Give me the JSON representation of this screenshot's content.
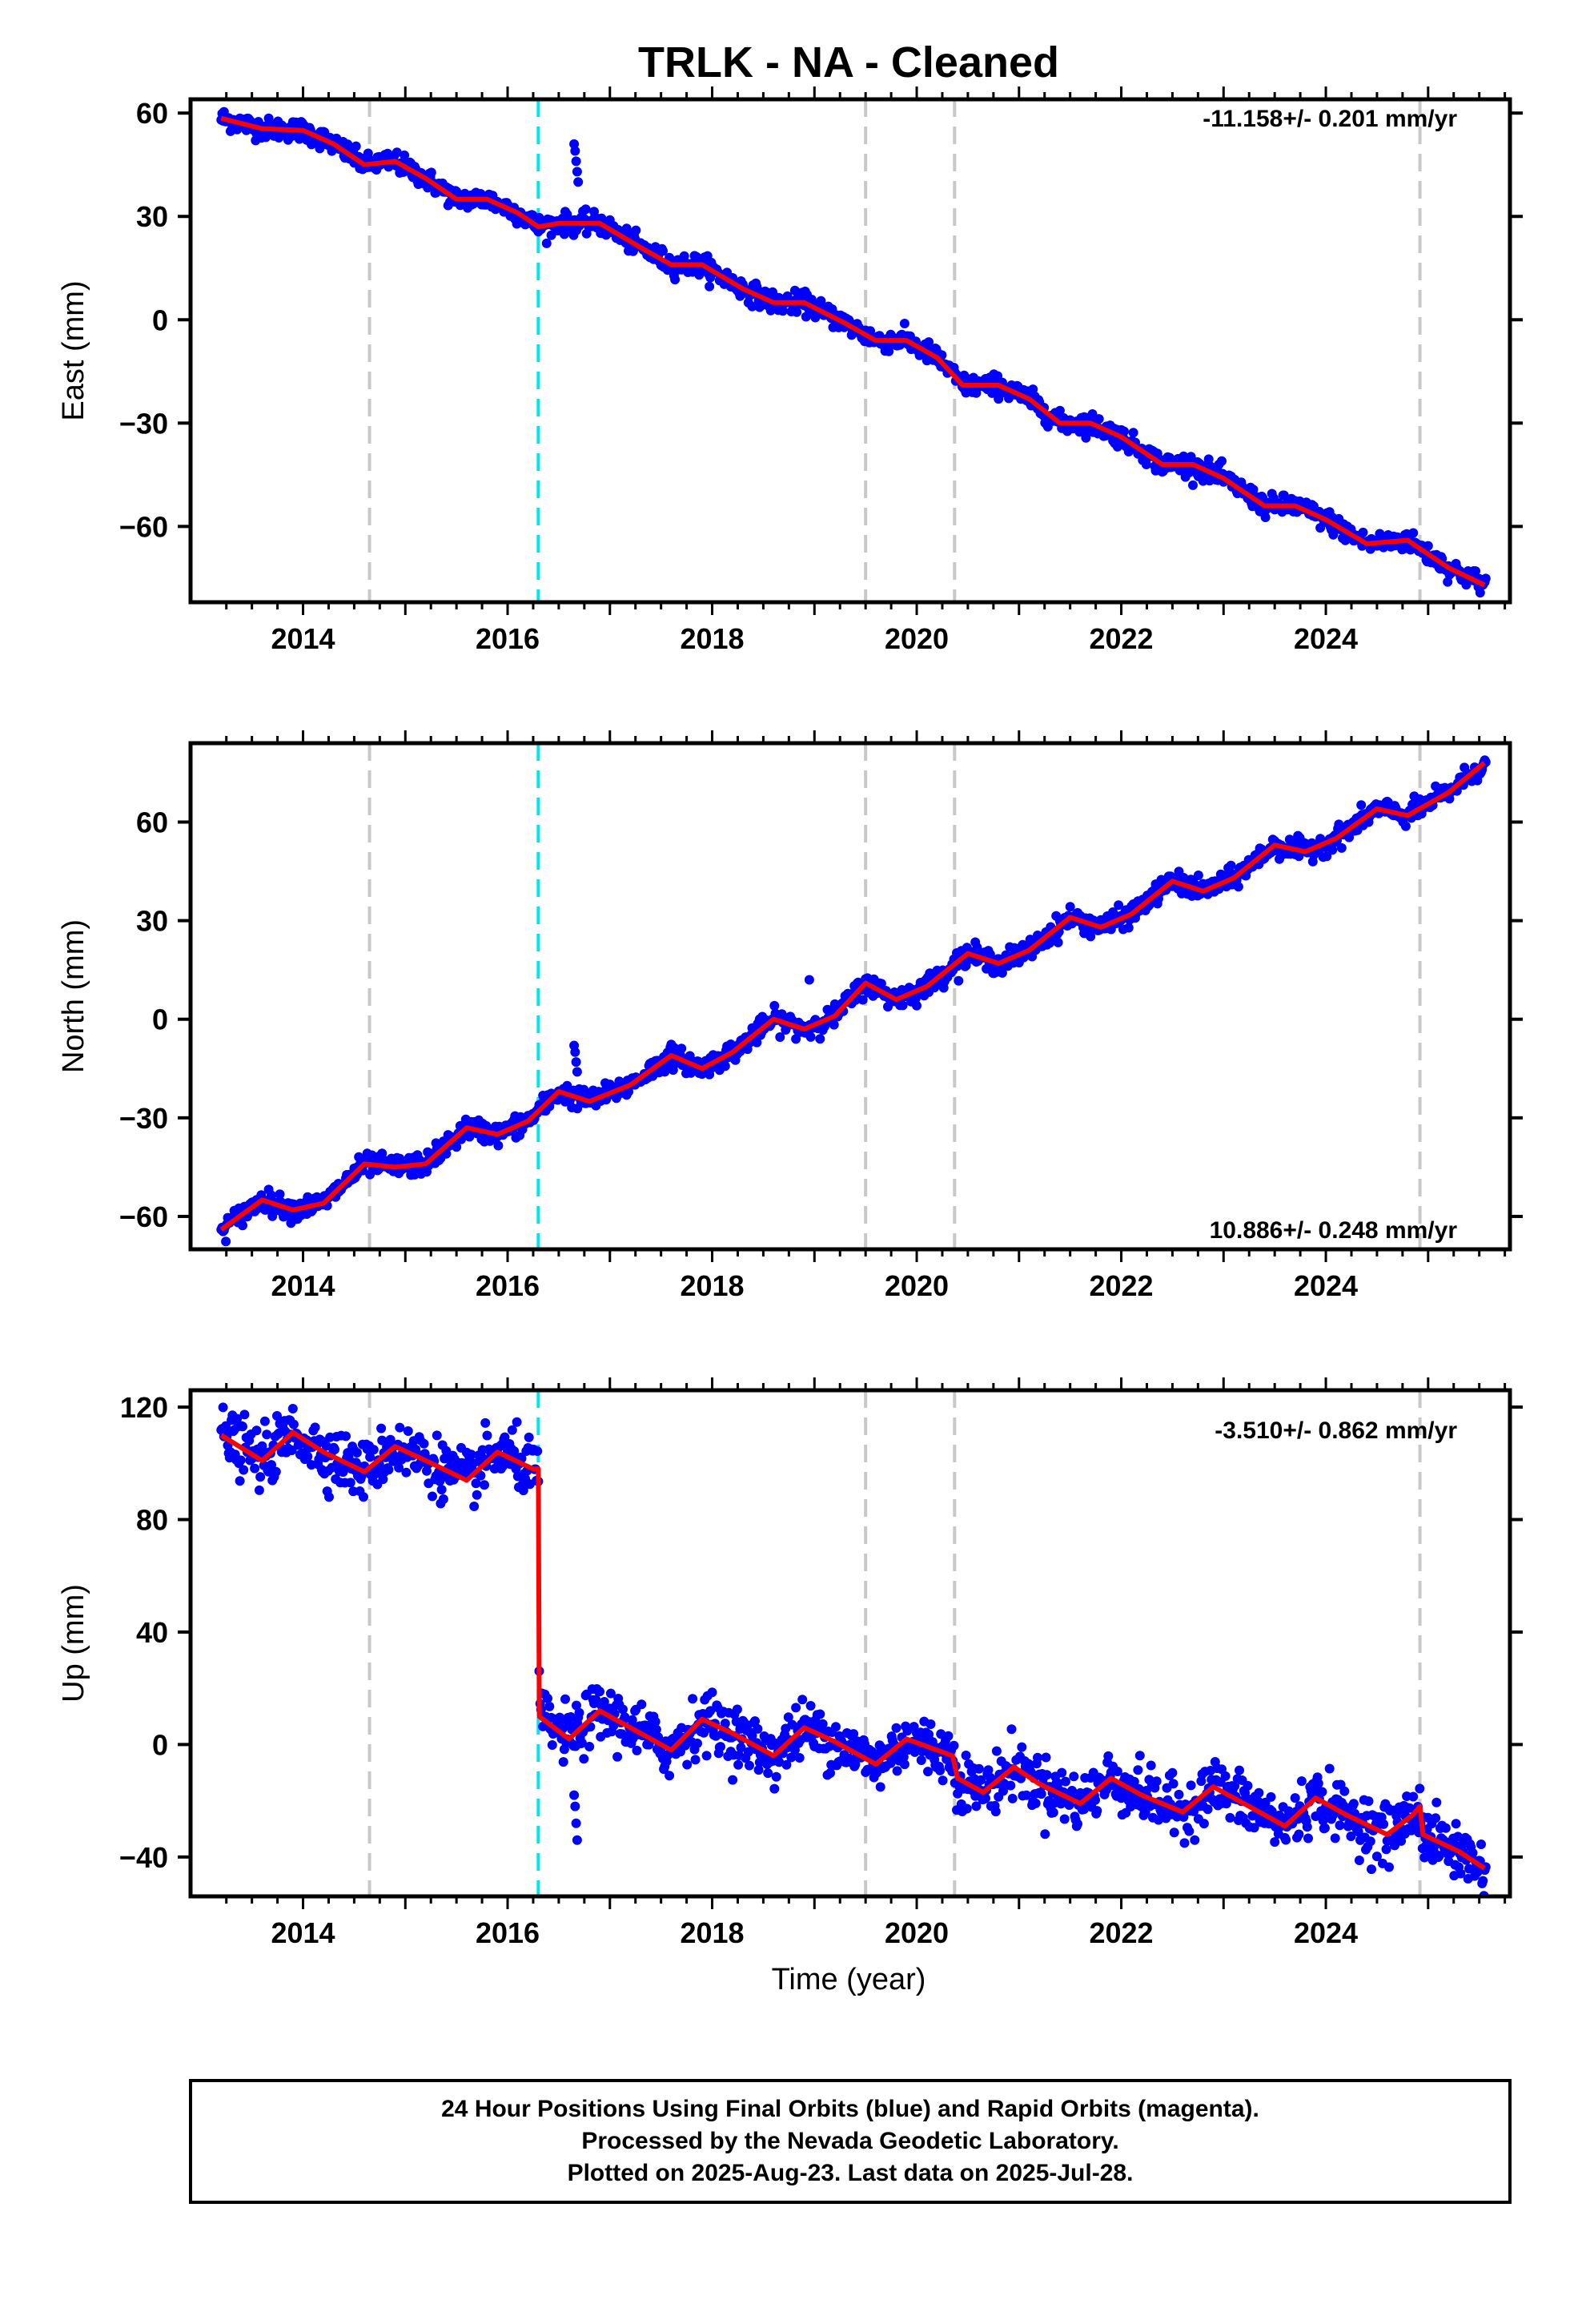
{
  "title": "TRLK  - NA - Cleaned",
  "xlabel": "Time (year)",
  "footer": {
    "line1": "24 Hour Positions Using Final Orbits (blue) and Rapid Orbits (magenta).",
    "line2": "Processed by the Nevada Geodetic Laboratory.",
    "line3": "Plotted on 2025-Aug-23. Last data on 2025-Jul-28."
  },
  "colors": {
    "data": "#0000ff",
    "model": "#ff0000",
    "equipment_change": "#c8c8c8",
    "earthquake": "#00e5ee"
  },
  "chart_data": [
    {
      "type": "scatter",
      "name": "east",
      "ylabel": "East (mm)",
      "rate_label": "-11.158+/- 0.201 mm/yr",
      "xlim": [
        2012.9,
        2025.8
      ],
      "ylim": [
        -82,
        64
      ],
      "yticks": [
        -60,
        -30,
        0,
        30,
        60
      ],
      "xticks": [
        2014,
        2016,
        2018,
        2020,
        2022,
        2024
      ],
      "xtick_labels": [
        "2014",
        "2016",
        "2018",
        "2020",
        "2022",
        "2024"
      ],
      "vlines_gray": [
        2014.65,
        2019.5,
        2020.37,
        2024.92
      ],
      "vlines_cyan": [
        2016.3
      ],
      "rate_mm_per_yr": -11.158,
      "y_at_start": 57.5,
      "seasonal_amp": 2.5,
      "scatter": 1.5,
      "steps": [],
      "outliers": [
        [
          2016.65,
          51
        ],
        [
          2016.66,
          49
        ],
        [
          2016.67,
          46
        ],
        [
          2016.68,
          43
        ],
        [
          2016.69,
          40
        ]
      ],
      "fit": [
        [
          2013.2,
          58.5
        ],
        [
          2013.6,
          55.5
        ],
        [
          2014.0,
          55
        ],
        [
          2014.3,
          51
        ],
        [
          2014.6,
          45
        ],
        [
          2014.9,
          46
        ],
        [
          2015.2,
          41
        ],
        [
          2015.5,
          35
        ],
        [
          2015.8,
          35
        ],
        [
          2016.1,
          31
        ],
        [
          2016.3,
          27
        ],
        [
          2016.5,
          28
        ],
        [
          2016.9,
          28
        ],
        [
          2017.3,
          21
        ],
        [
          2017.6,
          16
        ],
        [
          2017.9,
          16
        ],
        [
          2018.3,
          9
        ],
        [
          2018.6,
          5
        ],
        [
          2018.9,
          5
        ],
        [
          2019.3,
          -1
        ],
        [
          2019.6,
          -6
        ],
        [
          2019.9,
          -6
        ],
        [
          2020.2,
          -11
        ],
        [
          2020.45,
          -19
        ],
        [
          2020.8,
          -19
        ],
        [
          2021.1,
          -23
        ],
        [
          2021.4,
          -30
        ],
        [
          2021.7,
          -30
        ],
        [
          2022.0,
          -34
        ],
        [
          2022.4,
          -42
        ],
        [
          2022.7,
          -42
        ],
        [
          2023.0,
          -46
        ],
        [
          2023.4,
          -54
        ],
        [
          2023.7,
          -54
        ],
        [
          2024.0,
          -58
        ],
        [
          2024.4,
          -65
        ],
        [
          2024.8,
          -64
        ],
        [
          2025.2,
          -72
        ],
        [
          2025.55,
          -77
        ]
      ]
    },
    {
      "type": "scatter",
      "name": "north",
      "ylabel": "North (mm)",
      "rate_label": "10.886+/- 0.248 mm/yr",
      "xlim": [
        2012.9,
        2025.8
      ],
      "ylim": [
        -70,
        84
      ],
      "yticks": [
        -60,
        -30,
        0,
        30,
        60
      ],
      "xticks": [
        2014,
        2016,
        2018,
        2020,
        2022,
        2024
      ],
      "xtick_labels": [
        "2014",
        "2016",
        "2018",
        "2020",
        "2022",
        "2024"
      ],
      "vlines_gray": [
        2014.65,
        2019.5,
        2020.37,
        2024.92
      ],
      "vlines_cyan": [
        2016.3
      ],
      "rate_mm_per_yr": 10.886,
      "y_at_start": -63,
      "seasonal_amp": 3,
      "scatter": 1.6,
      "steps": [],
      "outliers": [
        [
          2016.65,
          -8
        ],
        [
          2016.66,
          -10
        ],
        [
          2016.67,
          -13
        ],
        [
          2016.68,
          -16
        ],
        [
          2018.95,
          12
        ]
      ],
      "fit": [
        [
          2013.2,
          -64
        ],
        [
          2013.6,
          -55
        ],
        [
          2013.9,
          -58
        ],
        [
          2014.2,
          -56
        ],
        [
          2014.6,
          -44
        ],
        [
          2014.9,
          -45
        ],
        [
          2015.2,
          -44
        ],
        [
          2015.6,
          -33
        ],
        [
          2015.9,
          -35
        ],
        [
          2016.2,
          -31
        ],
        [
          2016.5,
          -22
        ],
        [
          2016.8,
          -25
        ],
        [
          2017.2,
          -20
        ],
        [
          2017.6,
          -11
        ],
        [
          2017.9,
          -15
        ],
        [
          2018.2,
          -10
        ],
        [
          2018.6,
          0
        ],
        [
          2018.9,
          -3
        ],
        [
          2019.2,
          1
        ],
        [
          2019.5,
          11
        ],
        [
          2019.8,
          6
        ],
        [
          2020.1,
          10
        ],
        [
          2020.5,
          20
        ],
        [
          2020.8,
          17
        ],
        [
          2021.1,
          21
        ],
        [
          2021.5,
          31
        ],
        [
          2021.8,
          28
        ],
        [
          2022.1,
          32
        ],
        [
          2022.5,
          42
        ],
        [
          2022.8,
          39
        ],
        [
          2023.1,
          43
        ],
        [
          2023.5,
          53
        ],
        [
          2023.8,
          51
        ],
        [
          2024.1,
          55
        ],
        [
          2024.5,
          64
        ],
        [
          2024.8,
          62
        ],
        [
          2025.2,
          69
        ],
        [
          2025.55,
          78
        ]
      ]
    },
    {
      "type": "scatter",
      "name": "up",
      "ylabel": "Up (mm)",
      "rate_label": "-3.510+/- 0.862 mm/yr",
      "xlim": [
        2012.9,
        2025.8
      ],
      "ylim": [
        -54,
        126
      ],
      "yticks": [
        -40,
        0,
        40,
        80,
        120
      ],
      "xticks": [
        2014,
        2016,
        2018,
        2020,
        2022,
        2024
      ],
      "xtick_labels": [
        "2014",
        "2016",
        "2018",
        "2020",
        "2022",
        "2024"
      ],
      "vlines_gray": [
        2014.65,
        2019.5,
        2020.37,
        2024.92
      ],
      "vlines_cyan": [
        2016.3
      ],
      "rate_mm_per_yr": -3.51,
      "y_at_start": 108,
      "seasonal_amp": 5,
      "scatter": 5,
      "steps": [
        [
          2016.3,
          -100
        ]
      ],
      "outliers": [
        [
          2016.65,
          -18
        ],
        [
          2016.66,
          -22
        ],
        [
          2016.67,
          -28
        ],
        [
          2016.68,
          -34
        ]
      ],
      "fit": [
        [
          2013.2,
          110
        ],
        [
          2013.6,
          101
        ],
        [
          2013.9,
          111
        ],
        [
          2014.2,
          104
        ],
        [
          2014.6,
          97
        ],
        [
          2014.9,
          106
        ],
        [
          2015.2,
          101
        ],
        [
          2015.6,
          94
        ],
        [
          2015.9,
          104
        ],
        [
          2016.25,
          98
        ],
        [
          2016.3,
          98
        ],
        [
          2016.31,
          10
        ],
        [
          2016.6,
          2
        ],
        [
          2016.9,
          12
        ],
        [
          2017.2,
          6
        ],
        [
          2017.6,
          -2
        ],
        [
          2017.9,
          9
        ],
        [
          2018.2,
          4
        ],
        [
          2018.6,
          -4
        ],
        [
          2018.9,
          6
        ],
        [
          2019.2,
          1
        ],
        [
          2019.6,
          -7
        ],
        [
          2019.9,
          2
        ],
        [
          2020.35,
          -4
        ],
        [
          2020.4,
          -12
        ],
        [
          2020.65,
          -17
        ],
        [
          2020.95,
          -8
        ],
        [
          2021.2,
          -14
        ],
        [
          2021.6,
          -21
        ],
        [
          2021.9,
          -12
        ],
        [
          2022.2,
          -18
        ],
        [
          2022.6,
          -24
        ],
        [
          2022.9,
          -15
        ],
        [
          2023.2,
          -21
        ],
        [
          2023.6,
          -29
        ],
        [
          2023.9,
          -19
        ],
        [
          2024.2,
          -25
        ],
        [
          2024.6,
          -32
        ],
        [
          2024.85,
          -25
        ],
        [
          2024.92,
          -22
        ],
        [
          2024.95,
          -32
        ],
        [
          2025.3,
          -38
        ],
        [
          2025.55,
          -44
        ]
      ]
    }
  ]
}
